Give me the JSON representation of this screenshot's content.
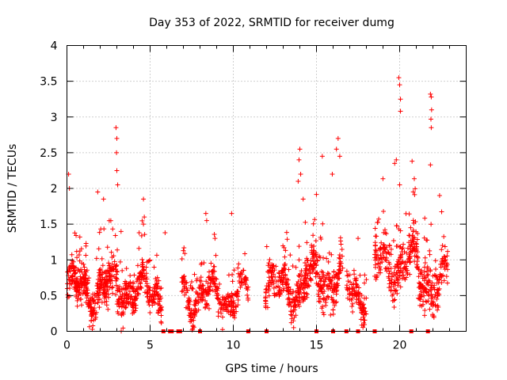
{
  "chart_data": {
    "type": "scatter",
    "title": "Day 353 of 2022, SRMTID for receiver dumg",
    "xlabel": "GPS time / hours",
    "ylabel": "SRMTID / TECUs",
    "xlim": [
      0,
      24
    ],
    "ylim": [
      0,
      4
    ],
    "xticks": [
      0,
      5,
      10,
      15,
      20
    ],
    "yticks": [
      0,
      0.5,
      1,
      1.5,
      2,
      2.5,
      3,
      3.5,
      4
    ],
    "xtick_labels": [
      "0",
      "5",
      "10",
      "15",
      "20"
    ],
    "ytick_labels": [
      "0",
      "0.5",
      "1",
      "1.5",
      "2",
      "2.5",
      "3",
      "3.5",
      "4"
    ],
    "grid": true,
    "legend": "none",
    "marker": "plus",
    "color": "#ff0000",
    "clusters": [
      {
        "x": [
          0.0,
          2.0
        ],
        "base": 0.6,
        "spread": 0.45,
        "n": 260,
        "peaks": [
          [
            0.1,
            2.2
          ],
          [
            0.15,
            2.0
          ],
          [
            1.85,
            1.95
          ]
        ]
      },
      {
        "x": [
          2.0,
          4.0
        ],
        "base": 0.6,
        "spread": 0.5,
        "n": 230,
        "peaks": [
          [
            2.2,
            1.85
          ],
          [
            2.95,
            2.85
          ],
          [
            3.0,
            2.7
          ],
          [
            2.98,
            2.5
          ],
          [
            3.0,
            2.25
          ],
          [
            3.05,
            2.05
          ]
        ]
      },
      {
        "x": [
          4.0,
          5.7
        ],
        "base": 0.55,
        "spread": 0.4,
        "n": 170,
        "peaks": [
          [
            4.6,
            1.85
          ],
          [
            4.65,
            1.6
          ],
          [
            4.6,
            1.5
          ]
        ]
      },
      {
        "x": [
          6.9,
          10.9
        ],
        "base": 0.5,
        "spread": 0.35,
        "n": 330,
        "peaks": [
          [
            8.35,
            1.65
          ],
          [
            8.4,
            1.55
          ],
          [
            9.9,
            1.65
          ],
          [
            8.9,
            1.3
          ]
        ]
      },
      {
        "x": [
          11.9,
          14.3
        ],
        "base": 0.6,
        "spread": 0.45,
        "n": 230,
        "peaks": [
          [
            14.0,
            2.55
          ],
          [
            13.95,
            2.4
          ],
          [
            14.05,
            2.2
          ],
          [
            13.9,
            2.1
          ],
          [
            14.2,
            1.85
          ]
        ]
      },
      {
        "x": [
          14.3,
          16.6
        ],
        "base": 0.75,
        "spread": 0.55,
        "n": 240,
        "peaks": [
          [
            15.35,
            2.45
          ],
          [
            16.3,
            2.7
          ],
          [
            16.2,
            2.55
          ],
          [
            15.95,
            2.2
          ],
          [
            16.4,
            2.45
          ]
        ]
      },
      {
        "x": [
          16.8,
          18.0
        ],
        "base": 0.55,
        "spread": 0.4,
        "n": 110,
        "peaks": [
          [
            17.5,
            1.3
          ]
        ]
      },
      {
        "x": [
          18.5,
          21.1
        ],
        "base": 0.95,
        "spread": 0.55,
        "n": 260,
        "peaks": [
          [
            19.95,
            3.55
          ],
          [
            20.0,
            3.45
          ],
          [
            20.05,
            3.25
          ],
          [
            20.05,
            3.08
          ],
          [
            19.8,
            2.4
          ],
          [
            19.7,
            2.35
          ],
          [
            20.0,
            2.05
          ]
        ]
      },
      {
        "x": [
          21.1,
          22.9
        ],
        "base": 0.7,
        "spread": 0.5,
        "n": 180,
        "peaks": [
          [
            21.85,
            3.32
          ],
          [
            21.9,
            3.28
          ],
          [
            21.92,
            3.1
          ],
          [
            21.88,
            2.97
          ],
          [
            21.9,
            2.85
          ],
          [
            21.85,
            2.33
          ],
          [
            22.4,
            1.9
          ]
        ]
      }
    ],
    "zero_markers_x": [
      5.8,
      6.2,
      6.3,
      6.7,
      6.8,
      8.0,
      10.9,
      12.0,
      15.0,
      16.0,
      16.8,
      17.5,
      18.5,
      20.7,
      21.7
    ],
    "isolated_points": [
      [
        5.9,
        1.38
      ]
    ]
  }
}
